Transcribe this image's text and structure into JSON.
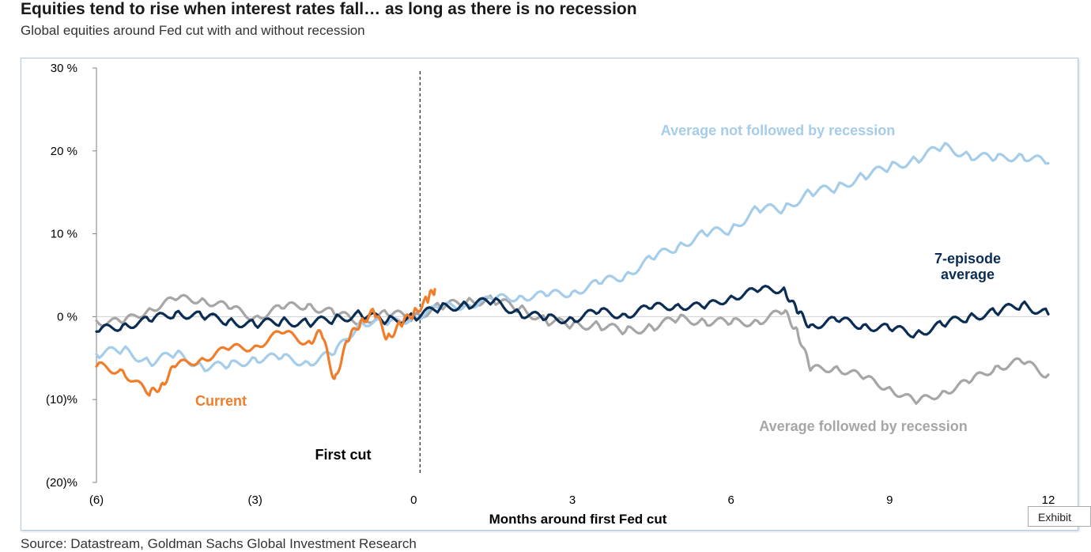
{
  "header": {
    "title": "Equities tend to rise when interest rates fall… as long as there is no recession",
    "subtitle": "Global equities around Fed cut with and without recession"
  },
  "footer": {
    "source": "Source: Datastream, Goldman Sachs Global Investment Research",
    "exhibit_label": "Exhibit"
  },
  "chart_data": {
    "type": "line",
    "title": "Equities tend to rise when interest rates fall… as long as there is no recession",
    "subtitle": "Global equities around Fed cut with and without recession",
    "xlabel": "Months around first Fed cut",
    "ylabel": "",
    "xlim": [
      -6,
      12
    ],
    "ylim": [
      -20,
      30
    ],
    "x_ticks": [
      -6,
      -3,
      0,
      3,
      6,
      9,
      12
    ],
    "x_tick_labels": [
      "(6)",
      "(3)",
      "0",
      "3",
      "6",
      "9",
      "12"
    ],
    "y_ticks": [
      30,
      20,
      10,
      0,
      -10,
      -20
    ],
    "y_tick_labels": [
      "30 %",
      "20 %",
      "10 %",
      "0 %",
      "(10)%",
      "(20)%"
    ],
    "grid": false,
    "zero_line": true,
    "vertical_marker": {
      "x": 0,
      "label": "First cut",
      "style": "dashed"
    },
    "annotations": {
      "no_recession": "Average not followed by recession",
      "episode_avg": [
        "7-episode",
        "average"
      ],
      "current": "Current",
      "recession": "Average followed by recession"
    },
    "series": [
      {
        "name": "Average followed by recession",
        "color": "#a6a6a6",
        "x": [
          -6,
          -5.5,
          -5,
          -4.5,
          -4,
          -3.5,
          -3,
          -2.5,
          -2,
          -1.5,
          -1,
          -0.5,
          0,
          0.5,
          1,
          1.5,
          2,
          2.5,
          3,
          3.5,
          4,
          4.5,
          5,
          5.5,
          6,
          6.5,
          7,
          7.25,
          7.5,
          8,
          8.5,
          9,
          9.5,
          10,
          10.5,
          11,
          11.5,
          12
        ],
        "values": [
          -0.5,
          -0.8,
          1.0,
          2.0,
          2.2,
          1.0,
          0.0,
          1.0,
          1.5,
          0.3,
          -0.5,
          0.3,
          0.0,
          1.2,
          1.8,
          2.0,
          1.0,
          -0.5,
          -1.0,
          -1.0,
          -1.8,
          -1.2,
          -0.3,
          -0.5,
          -0.8,
          -0.5,
          0.5,
          -1.5,
          -6.5,
          -6.0,
          -7.5,
          -8.5,
          -10.5,
          -9.0,
          -8.0,
          -6.0,
          -5.5,
          -7.0
        ]
      },
      {
        "name": "Average not followed by recession",
        "color": "#a5cdea",
        "x": [
          -6,
          -5.5,
          -5,
          -4.5,
          -4,
          -3.5,
          -3,
          -2.5,
          -2,
          -1.5,
          -1,
          -0.5,
          0,
          0.5,
          1,
          1.5,
          2,
          2.5,
          3,
          3.5,
          4,
          4.5,
          5,
          5.5,
          6,
          6.5,
          7,
          7.5,
          8,
          8.5,
          9,
          9.5,
          10,
          10.5,
          11,
          11.5,
          12
        ],
        "values": [
          -4.5,
          -4.0,
          -5.5,
          -4.5,
          -6.0,
          -6.0,
          -5.0,
          -5.0,
          -5.5,
          -4.5,
          -0.5,
          -1.0,
          0.0,
          1.0,
          1.5,
          2.0,
          2.5,
          2.5,
          3.0,
          4.0,
          5.0,
          7.0,
          8.5,
          10.0,
          10.5,
          13.0,
          13.0,
          15.0,
          15.5,
          17.0,
          18.0,
          19.0,
          20.5,
          19.5,
          19.0,
          19.5,
          18.5
        ]
      },
      {
        "name": "7-episode average",
        "color": "#0b2d54",
        "x": [
          -6,
          -5.5,
          -5,
          -4.5,
          -4,
          -3.5,
          -3,
          -2.5,
          -2,
          -1.5,
          -1,
          -0.5,
          0,
          0.5,
          1,
          1.5,
          2,
          2.5,
          3,
          3.5,
          4,
          4.5,
          5,
          5.5,
          6,
          6.5,
          7,
          7.25,
          7.5,
          8,
          8.5,
          9,
          9.5,
          10,
          10.5,
          11,
          11.5,
          12
        ],
        "values": [
          -1.8,
          -1.0,
          -0.5,
          0.5,
          0.0,
          -0.5,
          -1.0,
          -0.5,
          -0.8,
          -0.3,
          0.3,
          -0.5,
          0.0,
          1.0,
          1.5,
          1.8,
          0.5,
          -0.3,
          -0.2,
          0.5,
          0.3,
          1.0,
          1.5,
          1.0,
          2.5,
          3.0,
          3.5,
          0.5,
          -1.0,
          -0.5,
          -1.0,
          -1.5,
          -2.0,
          -1.0,
          0.0,
          0.5,
          1.5,
          0.3
        ]
      },
      {
        "name": "Current",
        "color": "#f07d2a",
        "x": [
          -6,
          -5.5,
          -5,
          -4.75,
          -4.5,
          -4,
          -3.5,
          -3,
          -2.5,
          -2,
          -1.75,
          -1.5,
          -1.25,
          -1,
          -0.75,
          -0.5,
          -0.25,
          0,
          0.25,
          0.4
        ],
        "values": [
          -6.0,
          -6.5,
          -9.5,
          -8.0,
          -6.0,
          -5.0,
          -4.0,
          -3.5,
          -2.0,
          -3.0,
          -2.0,
          -7.5,
          -3.0,
          -0.5,
          0.5,
          -2.5,
          -1.0,
          0.5,
          2.0,
          3.3
        ]
      }
    ]
  }
}
